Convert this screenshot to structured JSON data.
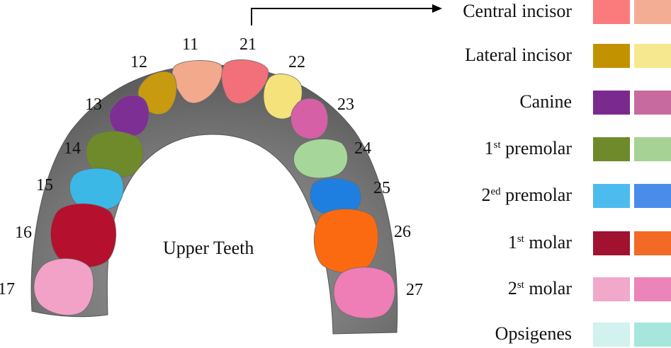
{
  "center_label": "Upper Teeth",
  "teeth": [
    {
      "id": "11",
      "color": "#F3A98B"
    },
    {
      "id": "12",
      "color": "#C79A10"
    },
    {
      "id": "13",
      "color": "#7E2F94"
    },
    {
      "id": "14",
      "color": "#6E8A2A"
    },
    {
      "id": "15",
      "color": "#3BB8E6"
    },
    {
      "id": "16",
      "color": "#B5102E"
    },
    {
      "id": "17",
      "color": "#F2A2C6"
    },
    {
      "id": "21",
      "color": "#F2707A"
    },
    {
      "id": "22",
      "color": "#F5E27A"
    },
    {
      "id": "23",
      "color": "#D660A6"
    },
    {
      "id": "24",
      "color": "#A7D69A"
    },
    {
      "id": "25",
      "color": "#1E7FE0"
    },
    {
      "id": "26",
      "color": "#FB6A10"
    },
    {
      "id": "27",
      "color": "#EE7EB5"
    }
  ],
  "legend": [
    {
      "label": "Central incisor",
      "sup": "",
      "suffix": "",
      "colors": [
        "#FB7B7C",
        "#F4AD95"
      ]
    },
    {
      "label": "Lateral incisor",
      "sup": "",
      "suffix": "",
      "colors": [
        "#C39200",
        "#F6E88F"
      ]
    },
    {
      "label": "Canine",
      "sup": "",
      "suffix": "",
      "colors": [
        "#7A2A8E",
        "#C76A9F"
      ]
    },
    {
      "label": "1",
      "sup": "st",
      "suffix": " premolar",
      "colors": [
        "#6E8A2A",
        "#A6D395"
      ]
    },
    {
      "label": "2",
      "sup": "ed",
      "suffix": " premolar",
      "colors": [
        "#4CBCEE",
        "#4A8CEA"
      ]
    },
    {
      "label": "1",
      "sup": "st",
      "suffix": " molar",
      "colors": [
        "#A01230",
        "#F26A25"
      ]
    },
    {
      "label": "2",
      "sup": "st",
      "suffix": " molar",
      "colors": [
        "#F1A8CB",
        "#EB84B8"
      ]
    },
    {
      "label": "Opsigenes",
      "sup": "",
      "suffix": "",
      "colors": [
        "#D1F2EE",
        "#A6E6DD"
      ]
    }
  ]
}
